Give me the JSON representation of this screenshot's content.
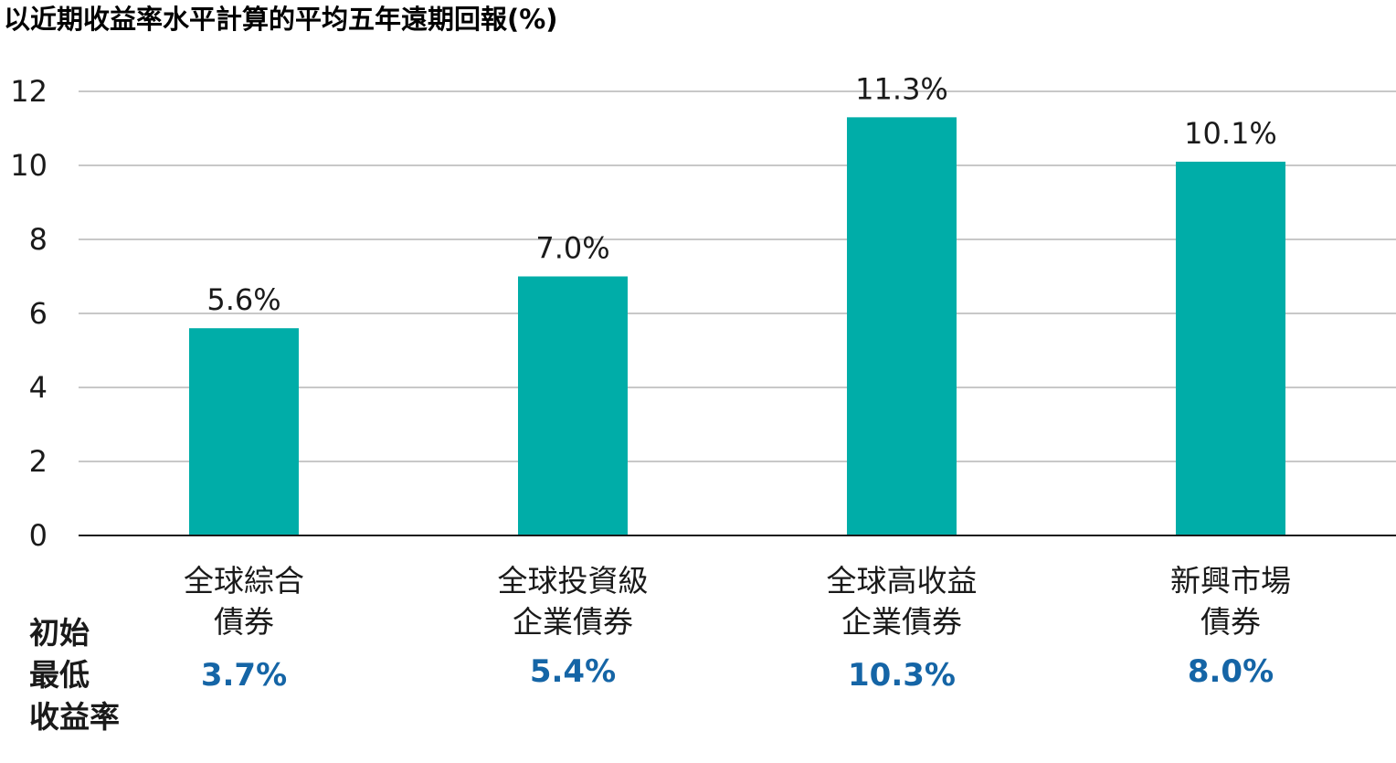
{
  "chart_data": {
    "type": "bar",
    "title": "以近期收益率水平計算的平均五年遠期回報(%)",
    "categories": [
      [
        "全球綜合",
        "債券"
      ],
      [
        "全球投資級",
        "企業債券"
      ],
      [
        "全球高收益",
        "企業債券"
      ],
      [
        "新興市場",
        "債券"
      ]
    ],
    "values": [
      5.6,
      7.0,
      11.3,
      10.1
    ],
    "value_labels": [
      "5.6%",
      "7.0%",
      "11.3%",
      "10.1%"
    ],
    "ylim": [
      0,
      12
    ],
    "yticks": [
      "0",
      "2",
      "4",
      "6",
      "8",
      "10",
      "12"
    ],
    "grid": true,
    "bar_color": "#00ada8",
    "grid_color": "#c8c8c8",
    "axis_color": "#1a1a1a",
    "initial_yield": {
      "label": [
        "初始",
        "最低",
        "收益率"
      ],
      "values": [
        "3.7%",
        "5.4%",
        "10.3%",
        "8.0%"
      ],
      "color": "#1565a6"
    }
  }
}
